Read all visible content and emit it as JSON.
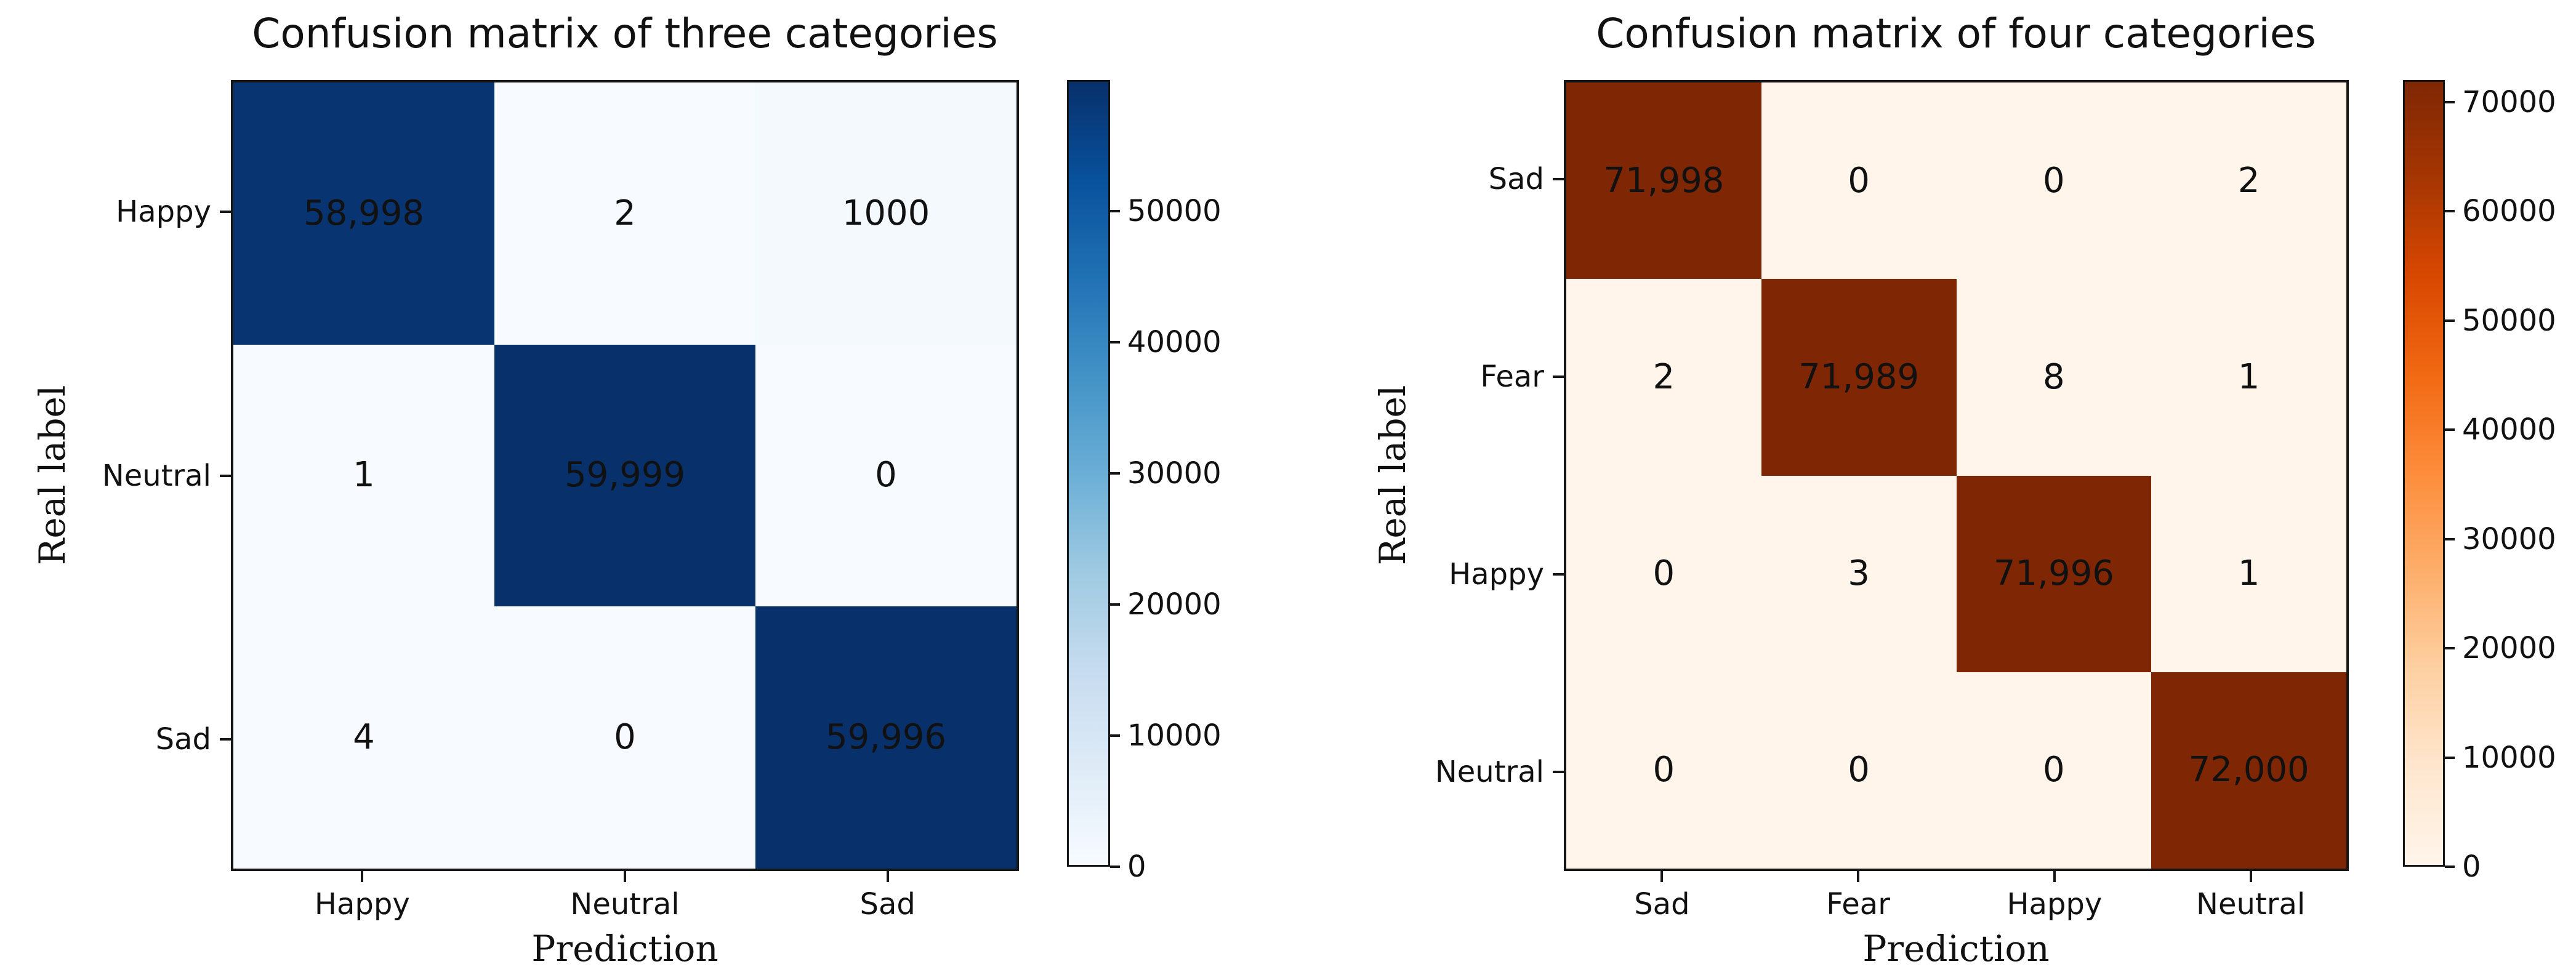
{
  "figure": {
    "background_color": "#ffffff",
    "text_color": "#111111",
    "axis_line_color": "#161616"
  },
  "chart_data": [
    {
      "type": "heatmap",
      "title": "Confusion matrix of three categories",
      "xlabel": "Prediction",
      "ylabel": "Real label",
      "x_categories": [
        "Happy",
        "Neutral",
        "Sad"
      ],
      "y_categories": [
        "Happy",
        "Neutral",
        "Sad"
      ],
      "matrix": [
        [
          58998,
          2,
          1000
        ],
        [
          1,
          59999,
          0
        ],
        [
          4,
          0,
          59996
        ]
      ],
      "cell_labels": [
        [
          "58,998",
          "2",
          "1000"
        ],
        [
          "1",
          "59,999",
          "0"
        ],
        [
          "4",
          "0",
          "59,996"
        ]
      ],
      "vmin": 0,
      "vmax": 59999,
      "colormap": "Blues",
      "colormap_stops": [
        "#f7fbff",
        "#deebf7",
        "#c6dbef",
        "#9ecae1",
        "#6baed6",
        "#4292c6",
        "#2171b5",
        "#08519c",
        "#08306b"
      ],
      "colorbar_ticks": [
        0,
        10000,
        20000,
        30000,
        40000,
        50000
      ],
      "colorbar_tick_labels": [
        "0",
        "10000",
        "20000",
        "30000",
        "40000",
        "50000"
      ],
      "legend_position": "right-colorbar",
      "grid": false
    },
    {
      "type": "heatmap",
      "title": "Confusion matrix of four categories",
      "xlabel": "Prediction",
      "ylabel": "Real label",
      "x_categories": [
        "Sad",
        "Fear",
        "Happy",
        "Neutral"
      ],
      "y_categories": [
        "Sad",
        "Fear",
        "Happy",
        "Neutral"
      ],
      "matrix": [
        [
          71998,
          0,
          0,
          2
        ],
        [
          2,
          71989,
          8,
          1
        ],
        [
          0,
          3,
          71996,
          1
        ],
        [
          0,
          0,
          0,
          72000
        ]
      ],
      "cell_labels": [
        [
          "71,998",
          "0",
          "0",
          "2"
        ],
        [
          "2",
          "71,989",
          "8",
          "1"
        ],
        [
          "0",
          "3",
          "71,996",
          "1"
        ],
        [
          "0",
          "0",
          "0",
          "72,000"
        ]
      ],
      "vmin": 0,
      "vmax": 72000,
      "colormap": "Oranges",
      "colormap_stops": [
        "#fff5eb",
        "#fee6ce",
        "#fdd0a2",
        "#fdae6b",
        "#fd8d3c",
        "#f16913",
        "#d94801",
        "#a63603",
        "#7f2704"
      ],
      "colorbar_ticks": [
        0,
        10000,
        20000,
        30000,
        40000,
        50000,
        60000,
        70000
      ],
      "colorbar_tick_labels": [
        "0",
        "10000",
        "20000",
        "30000",
        "40000",
        "50000",
        "60000",
        "70000"
      ],
      "legend_position": "right-colorbar",
      "grid": false
    }
  ]
}
